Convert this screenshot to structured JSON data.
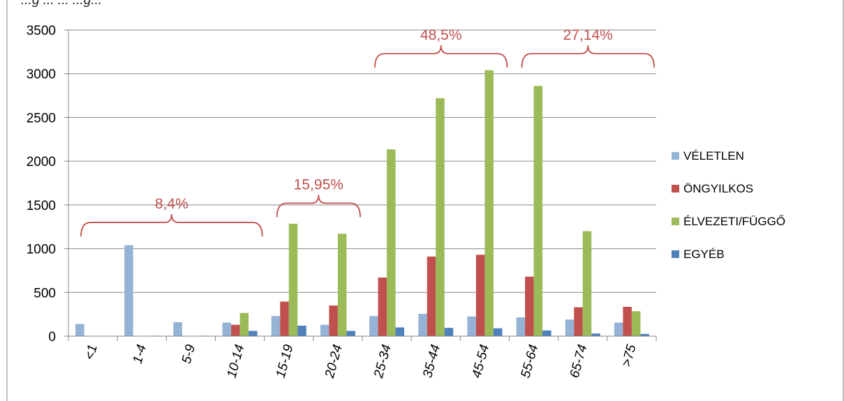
{
  "header_text": "...g ... ... ...g...",
  "chart_data": {
    "type": "bar",
    "categories": [
      "<1",
      "1-4",
      "5-9",
      "10-14",
      "15-19",
      "20-24",
      "25-34",
      "35-44",
      "45-54",
      "55-64",
      "65-74",
      ">75"
    ],
    "series": [
      {
        "name": "VÉLETLEN",
        "color": "#95b3d7",
        "values": [
          140,
          1040,
          160,
          155,
          230,
          130,
          230,
          255,
          225,
          215,
          190,
          155
        ]
      },
      {
        "name": "ÖNGYILKOS",
        "color": "#c0504d",
        "values": [
          0,
          0,
          0,
          130,
          395,
          350,
          670,
          910,
          930,
          680,
          330,
          335
        ]
      },
      {
        "name": "ÉLVEZETI/FÜGGŐ",
        "color": "#9bbb59",
        "values": [
          0,
          0,
          0,
          265,
          1285,
          1170,
          2135,
          2720,
          3040,
          2860,
          1200,
          285
        ]
      },
      {
        "name": "EGYÉB",
        "color": "#4f81bd",
        "values": [
          0,
          5,
          5,
          60,
          120,
          60,
          100,
          95,
          90,
          65,
          30,
          25
        ]
      }
    ],
    "ylim": [
      0,
      3500
    ],
    "yticks": [
      0,
      500,
      1000,
      1500,
      2000,
      2500,
      3000,
      3500
    ],
    "grid": true,
    "legend_position": "right",
    "annotations": [
      {
        "label": "8,4%",
        "from": "<1",
        "to": "10-14",
        "level": 1300,
        "color": "#c0504d"
      },
      {
        "label": "15,95%",
        "from": "15-19",
        "to": "20-24",
        "level": 1520,
        "color": "#c0504d"
      },
      {
        "label": "48,5%",
        "from": "25-34",
        "to": "45-54",
        "level": 3230,
        "color": "#c0504d"
      },
      {
        "label": "27,14%",
        "from": "55-64",
        "to": ">75",
        "level": 3230,
        "color": "#c0504d"
      }
    ]
  }
}
